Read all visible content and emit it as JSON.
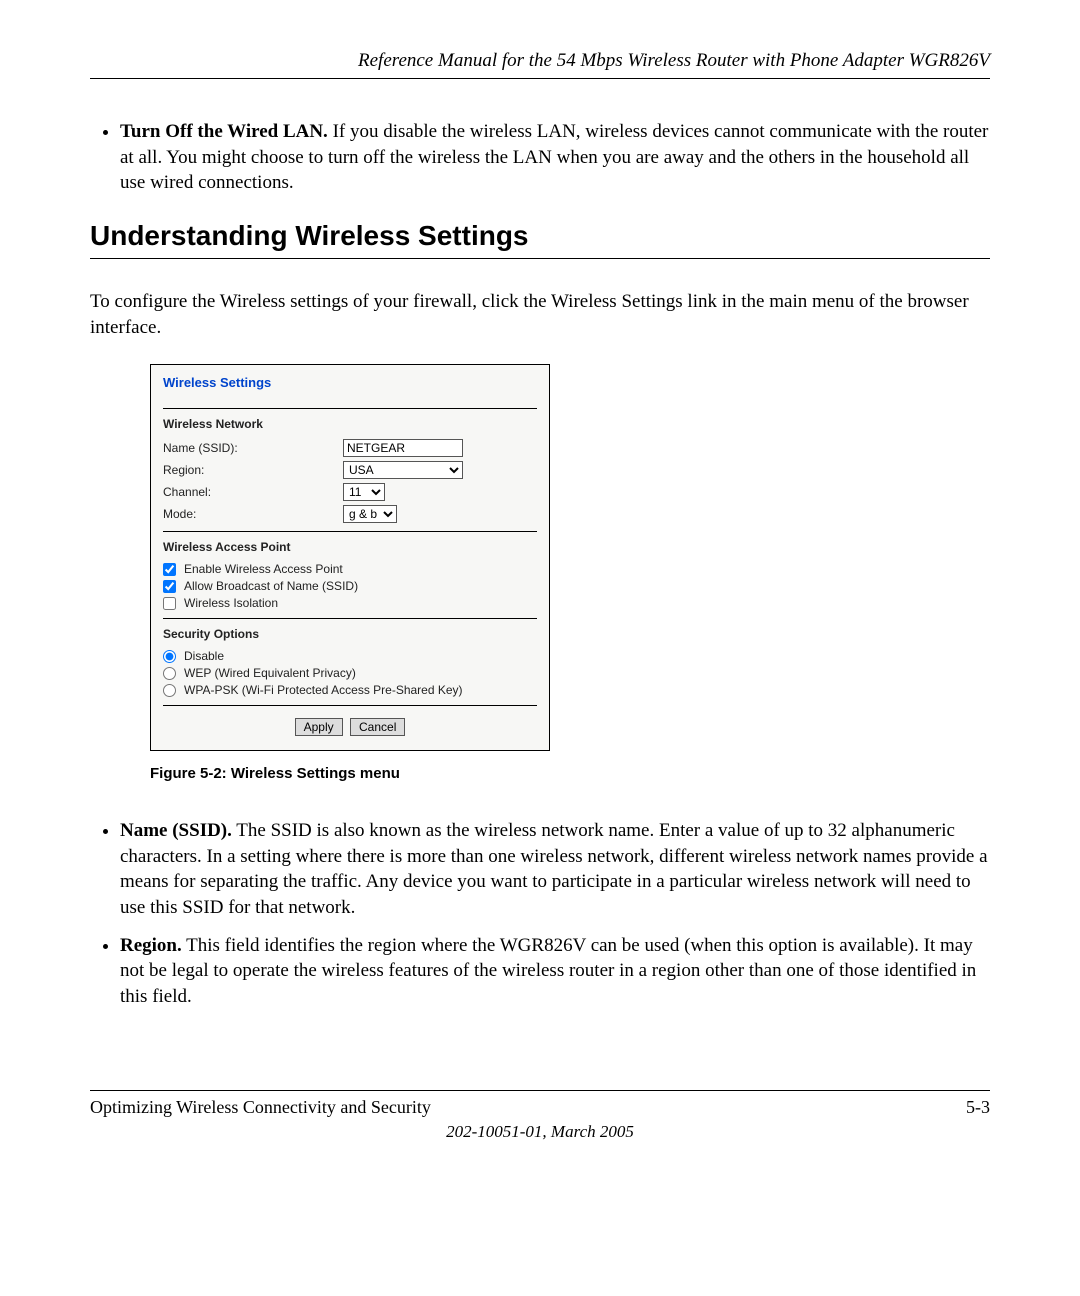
{
  "header": {
    "title": "Reference Manual for the 54 Mbps Wireless Router with Phone Adapter WGR826V"
  },
  "bullet1": {
    "lead": "Turn Off the Wired LAN.",
    "text": " If you disable the wireless LAN, wireless devices cannot communicate with the router at all. You might choose to turn off the wireless the LAN when you are away and the others in the household all use wired connections."
  },
  "section_heading": "Understanding Wireless Settings",
  "intro": "To configure the Wireless settings of your firewall, click the Wireless Settings link in the main menu of the browser interface.",
  "shot": {
    "title": "Wireless Settings",
    "group_network": "Wireless Network",
    "ssid_label": "Name (SSID):",
    "ssid_value": "NETGEAR",
    "region_label": "Region:",
    "region_value": "USA",
    "channel_label": "Channel:",
    "channel_value": "11",
    "mode_label": "Mode:",
    "mode_value": "g & b",
    "group_ap": "Wireless Access Point",
    "chk_enable": "Enable Wireless Access Point",
    "chk_broadcast": "Allow Broadcast of Name (SSID)",
    "chk_isolation": "Wireless Isolation",
    "group_sec": "Security Options",
    "rad_disable": "Disable",
    "rad_wep": "WEP (Wired Equivalent Privacy)",
    "rad_wpa": "WPA-PSK (Wi-Fi Protected Access Pre-Shared Key)",
    "btn_apply": "Apply",
    "btn_cancel": "Cancel"
  },
  "figure_caption": "Figure 5-2:  Wireless Settings menu",
  "bullet_ssid": {
    "lead": "Name (SSID).",
    "text": " The SSID is also known as the wireless network name. Enter a value of up to 32 alphanumeric characters. In a setting where there is more than one wireless network, different wireless network names provide a means for separating the traffic. Any device you want to participate in a particular wireless network will need to use this SSID for that network."
  },
  "bullet_region": {
    "lead": "Region.",
    "text": " This field identifies the region where the WGR826V can be used (when this option is available). It may not be legal to operate the wireless features of the wireless router in a region other than one of those identified in this field."
  },
  "footer": {
    "left": "Optimizing Wireless Connectivity and Security",
    "right": "5-3",
    "sub": "202-10051-01, March 2005"
  }
}
